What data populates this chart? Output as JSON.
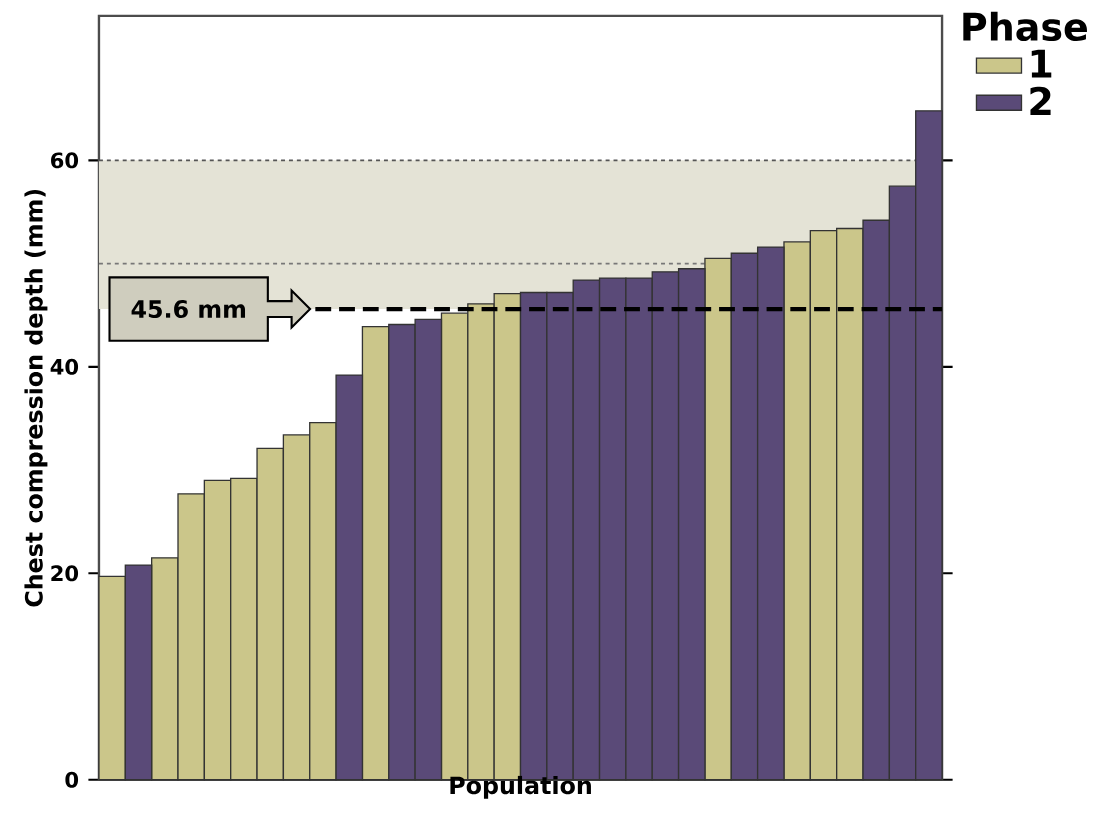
{
  "chart_data": {
    "type": "bar",
    "xlabel": "Population",
    "ylabel": "Chest compression depth (mm)",
    "legend_title": "Phase",
    "legend": "top right",
    "categories": [
      null,
      null,
      null,
      null,
      null,
      null,
      null,
      null,
      null,
      null,
      null,
      null,
      null,
      null,
      null,
      null,
      null,
      null,
      null,
      null,
      null,
      null,
      null,
      null,
      null,
      null,
      null,
      null,
      null,
      null,
      null,
      null
    ],
    "series": [
      {
        "name": "1",
        "color": "#cbc68a",
        "values": [
          19.7,
          null,
          21.5,
          27.7,
          29.0,
          29.2,
          32.1,
          33.4,
          34.6,
          null,
          43.9,
          null,
          null,
          45.2,
          46.1,
          47.1,
          null,
          null,
          null,
          null,
          null,
          null,
          null,
          50.5,
          null,
          null,
          52.1,
          53.2,
          53.4,
          null,
          null,
          null
        ]
      },
      {
        "name": "2",
        "color": "#5a4a78",
        "values": [
          null,
          20.8,
          null,
          null,
          null,
          null,
          null,
          null,
          null,
          39.2,
          null,
          44.1,
          44.6,
          null,
          null,
          null,
          47.2,
          47.2,
          48.4,
          48.6,
          48.6,
          49.2,
          49.5,
          null,
          51.0,
          51.6,
          null,
          null,
          null,
          54.2,
          57.5,
          64.8
        ]
      }
    ],
    "ylim": [
      0,
      74
    ],
    "yticks": [
      0,
      20,
      40,
      60
    ],
    "bands": [
      {
        "axis": "y",
        "from": 45.6,
        "to": 60,
        "color": "#e4e3d6"
      }
    ],
    "ref_lines": [
      {
        "axis": "y",
        "value": 60,
        "line_style": "dotted",
        "color": "#555555"
      },
      {
        "axis": "y",
        "value": 50,
        "line_style": "dotted",
        "color": "#777777"
      },
      {
        "axis": "y",
        "value": 45.6,
        "line_style": "dashed",
        "color": "#000000",
        "label": "45.6 mm"
      }
    ]
  }
}
